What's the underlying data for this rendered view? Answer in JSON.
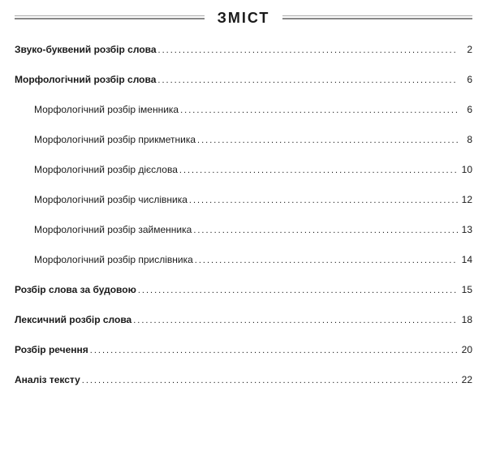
{
  "title": "ЗМІСТ",
  "entries": [
    {
      "label": "Звуко-буквений  розбір  слова",
      "page": "2",
      "level": 0
    },
    {
      "label": "Морфологічний  розбір  слова",
      "page": "6",
      "level": 0
    },
    {
      "label": "Морфологічний  розбір  іменника",
      "page": "6",
      "level": 1
    },
    {
      "label": "Морфологічний  розбір  прикметника",
      "page": "8",
      "level": 1
    },
    {
      "label": "Морфологічний  розбір  дієслова",
      "page": "10",
      "level": 1
    },
    {
      "label": "Морфологічний  розбір  числівника",
      "page": "12",
      "level": 1
    },
    {
      "label": "Морфологічний  розбір  займенника",
      "page": "13",
      "level": 1
    },
    {
      "label": "Морфологічний  розбір  прислівника",
      "page": "14",
      "level": 1
    },
    {
      "label": "Розбір  слова  за  будовою",
      "page": "15",
      "level": 0
    },
    {
      "label": "Лексичний  розбір  слова",
      "page": "18",
      "level": 0
    },
    {
      "label": "Розбір  речення",
      "page": "20",
      "level": 0
    },
    {
      "label": "Аналіз  тексту",
      "page": "22",
      "level": 0
    }
  ],
  "colors": {
    "text": "#1a1a1a",
    "line": "#888888",
    "bg": "#ffffff"
  }
}
